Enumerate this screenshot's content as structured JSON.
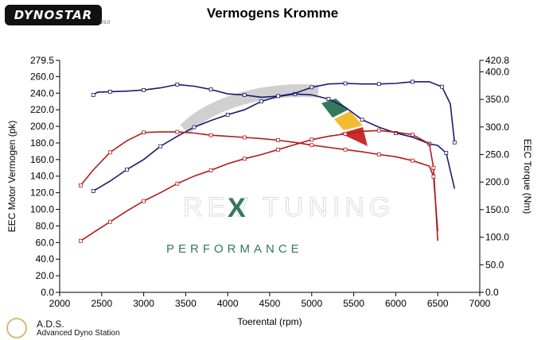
{
  "header": {
    "logo_text": "DYNOSTAR",
    "logo_sub": "V3.0",
    "title": "Vermogens Kromme"
  },
  "watermark": {
    "brand_left": "REV",
    "brand_mark": "X",
    "brand_right": "TUNING",
    "tagline": "PERFORMANCE"
  },
  "footer": {
    "name": "A.D.S.",
    "subtitle": "Advanced Dyno Station"
  },
  "chart_data": {
    "type": "line",
    "title": "Vermogens Kromme",
    "xlabel": "Toerental (rpm)",
    "ylabel_left": "EEC Motor Vermogen (pk)",
    "ylabel_right": "EEC Torque (Nm)",
    "xlim": [
      2000,
      7000
    ],
    "ylim_left": [
      0,
      279.5
    ],
    "ylim_right": [
      0,
      420.8
    ],
    "x_ticks": [
      2000,
      2500,
      3000,
      3500,
      4000,
      4500,
      5000,
      5500,
      6000,
      6500,
      7000
    ],
    "y_ticks_left": [
      "0.0",
      "20.0",
      "40.0",
      "60.0",
      "80.0",
      "100.0",
      "120.0",
      "140.0",
      "160.0",
      "180.0",
      "200.0",
      "220.0",
      "240.0",
      "260.0",
      "279.5"
    ],
    "y_ticks_right": [
      "0.0",
      "50.0",
      "100.0",
      "150.0",
      "200.0",
      "250.0",
      "300.0",
      "350.0",
      "400.0",
      "420.8"
    ],
    "grid": false,
    "colors": {
      "blue": "#1a1a6e",
      "red": "#b31b1b"
    },
    "series": [
      {
        "axis": "left",
        "color": "#1a1a6e",
        "points": [
          [
            2400,
            122
          ],
          [
            2600,
            134
          ],
          [
            2800,
            148
          ],
          [
            3000,
            160
          ],
          [
            3200,
            176
          ],
          [
            3400,
            188
          ],
          [
            3600,
            199
          ],
          [
            3800,
            207
          ],
          [
            4000,
            214
          ],
          [
            4200,
            220
          ],
          [
            4400,
            230
          ],
          [
            4600,
            236
          ],
          [
            4800,
            239
          ],
          [
            5000,
            238
          ],
          [
            5200,
            233
          ],
          [
            5400,
            223
          ],
          [
            5600,
            208
          ],
          [
            5800,
            199
          ],
          [
            6000,
            192
          ],
          [
            6200,
            187
          ],
          [
            6400,
            179
          ],
          [
            6500,
            177
          ],
          [
            6600,
            168
          ],
          [
            6700,
            125
          ]
        ]
      },
      {
        "axis": "right",
        "color": "#1a1a6e",
        "points": [
          [
            2400,
            358
          ],
          [
            2450,
            363
          ],
          [
            2600,
            364
          ],
          [
            2800,
            365
          ],
          [
            3000,
            367
          ],
          [
            3200,
            371
          ],
          [
            3400,
            377
          ],
          [
            3600,
            374
          ],
          [
            3800,
            368
          ],
          [
            4000,
            360
          ],
          [
            4200,
            358
          ],
          [
            4400,
            354
          ],
          [
            4600,
            356
          ],
          [
            4800,
            361
          ],
          [
            5000,
            372
          ],
          [
            5200,
            378
          ],
          [
            5400,
            379
          ],
          [
            5600,
            378
          ],
          [
            5800,
            378
          ],
          [
            6000,
            379
          ],
          [
            6200,
            382
          ],
          [
            6400,
            382
          ],
          [
            6550,
            373
          ],
          [
            6650,
            342
          ],
          [
            6700,
            272
          ]
        ]
      },
      {
        "axis": "left",
        "color": "#b31b1b",
        "points": [
          [
            2250,
            62
          ],
          [
            2400,
            72
          ],
          [
            2600,
            85
          ],
          [
            2800,
            98
          ],
          [
            3000,
            110
          ],
          [
            3200,
            120
          ],
          [
            3400,
            131
          ],
          [
            3600,
            140
          ],
          [
            3800,
            147
          ],
          [
            4000,
            155
          ],
          [
            4200,
            161
          ],
          [
            4400,
            166
          ],
          [
            4600,
            172
          ],
          [
            4800,
            178
          ],
          [
            5000,
            184
          ],
          [
            5200,
            188
          ],
          [
            5400,
            191
          ],
          [
            5600,
            194
          ],
          [
            5800,
            195
          ],
          [
            6000,
            193
          ],
          [
            6200,
            190
          ],
          [
            6400,
            179
          ],
          [
            6450,
            150
          ],
          [
            6500,
            62
          ]
        ]
      },
      {
        "axis": "right",
        "color": "#b31b1b",
        "points": [
          [
            2250,
            194
          ],
          [
            2400,
            222
          ],
          [
            2600,
            254
          ],
          [
            2800,
            275
          ],
          [
            3000,
            290
          ],
          [
            3200,
            291
          ],
          [
            3400,
            291
          ],
          [
            3600,
            289
          ],
          [
            3800,
            285
          ],
          [
            4000,
            283
          ],
          [
            4200,
            281
          ],
          [
            4400,
            279
          ],
          [
            4600,
            276
          ],
          [
            4800,
            272
          ],
          [
            5000,
            267
          ],
          [
            5200,
            263
          ],
          [
            5400,
            259
          ],
          [
            5600,
            255
          ],
          [
            5800,
            250
          ],
          [
            6000,
            246
          ],
          [
            6200,
            239
          ],
          [
            6400,
            229
          ],
          [
            6450,
            210
          ],
          [
            6500,
            111
          ]
        ]
      }
    ]
  }
}
